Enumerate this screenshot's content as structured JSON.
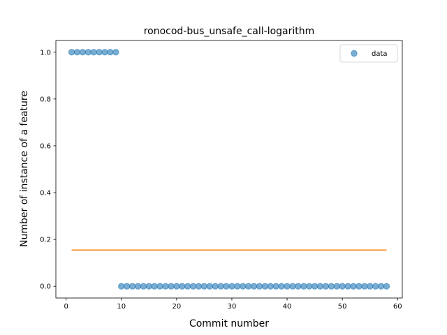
{
  "chart_data": {
    "type": "scatter",
    "title": "ronocod-bus_unsafe_call-logarithm",
    "xlabel": "Commit number",
    "ylabel": "Number of instance of a feature",
    "xlim": [
      -1.85,
      60.85
    ],
    "ylim": [
      -0.05,
      1.05
    ],
    "xticks": [
      0,
      10,
      20,
      30,
      40,
      50,
      60
    ],
    "yticks": [
      0.0,
      0.2,
      0.4,
      0.6,
      0.8,
      1.0
    ],
    "xtick_labels": [
      "0",
      "10",
      "20",
      "30",
      "40",
      "50",
      "60"
    ],
    "ytick_labels": [
      "0.0",
      "0.2",
      "0.4",
      "0.6",
      "0.8",
      "1.0"
    ],
    "legend": {
      "position": "top-right",
      "entries": [
        "data"
      ]
    },
    "grid": false,
    "series": [
      {
        "name": "data",
        "kind": "scatter",
        "color": "#1f77b4",
        "alpha": 0.6,
        "x": [
          1,
          2,
          3,
          4,
          5,
          6,
          7,
          8,
          9,
          10,
          11,
          12,
          13,
          14,
          15,
          16,
          17,
          18,
          19,
          20,
          21,
          22,
          23,
          24,
          25,
          26,
          27,
          28,
          29,
          30,
          31,
          32,
          33,
          34,
          35,
          36,
          37,
          38,
          39,
          40,
          41,
          42,
          43,
          44,
          45,
          46,
          47,
          48,
          49,
          50,
          51,
          52,
          53,
          54,
          55,
          56,
          57,
          58
        ],
        "y": [
          1,
          1,
          1,
          1,
          1,
          1,
          1,
          1,
          1,
          0,
          0,
          0,
          0,
          0,
          0,
          0,
          0,
          0,
          0,
          0,
          0,
          0,
          0,
          0,
          0,
          0,
          0,
          0,
          0,
          0,
          0,
          0,
          0,
          0,
          0,
          0,
          0,
          0,
          0,
          0,
          0,
          0,
          0,
          0,
          0,
          0,
          0,
          0,
          0,
          0,
          0,
          0,
          0,
          0,
          0,
          0,
          0,
          0
        ]
      },
      {
        "kind": "line",
        "color": "#ff7f0e",
        "x": [
          1,
          58
        ],
        "y": [
          0.155,
          0.155
        ]
      }
    ]
  }
}
